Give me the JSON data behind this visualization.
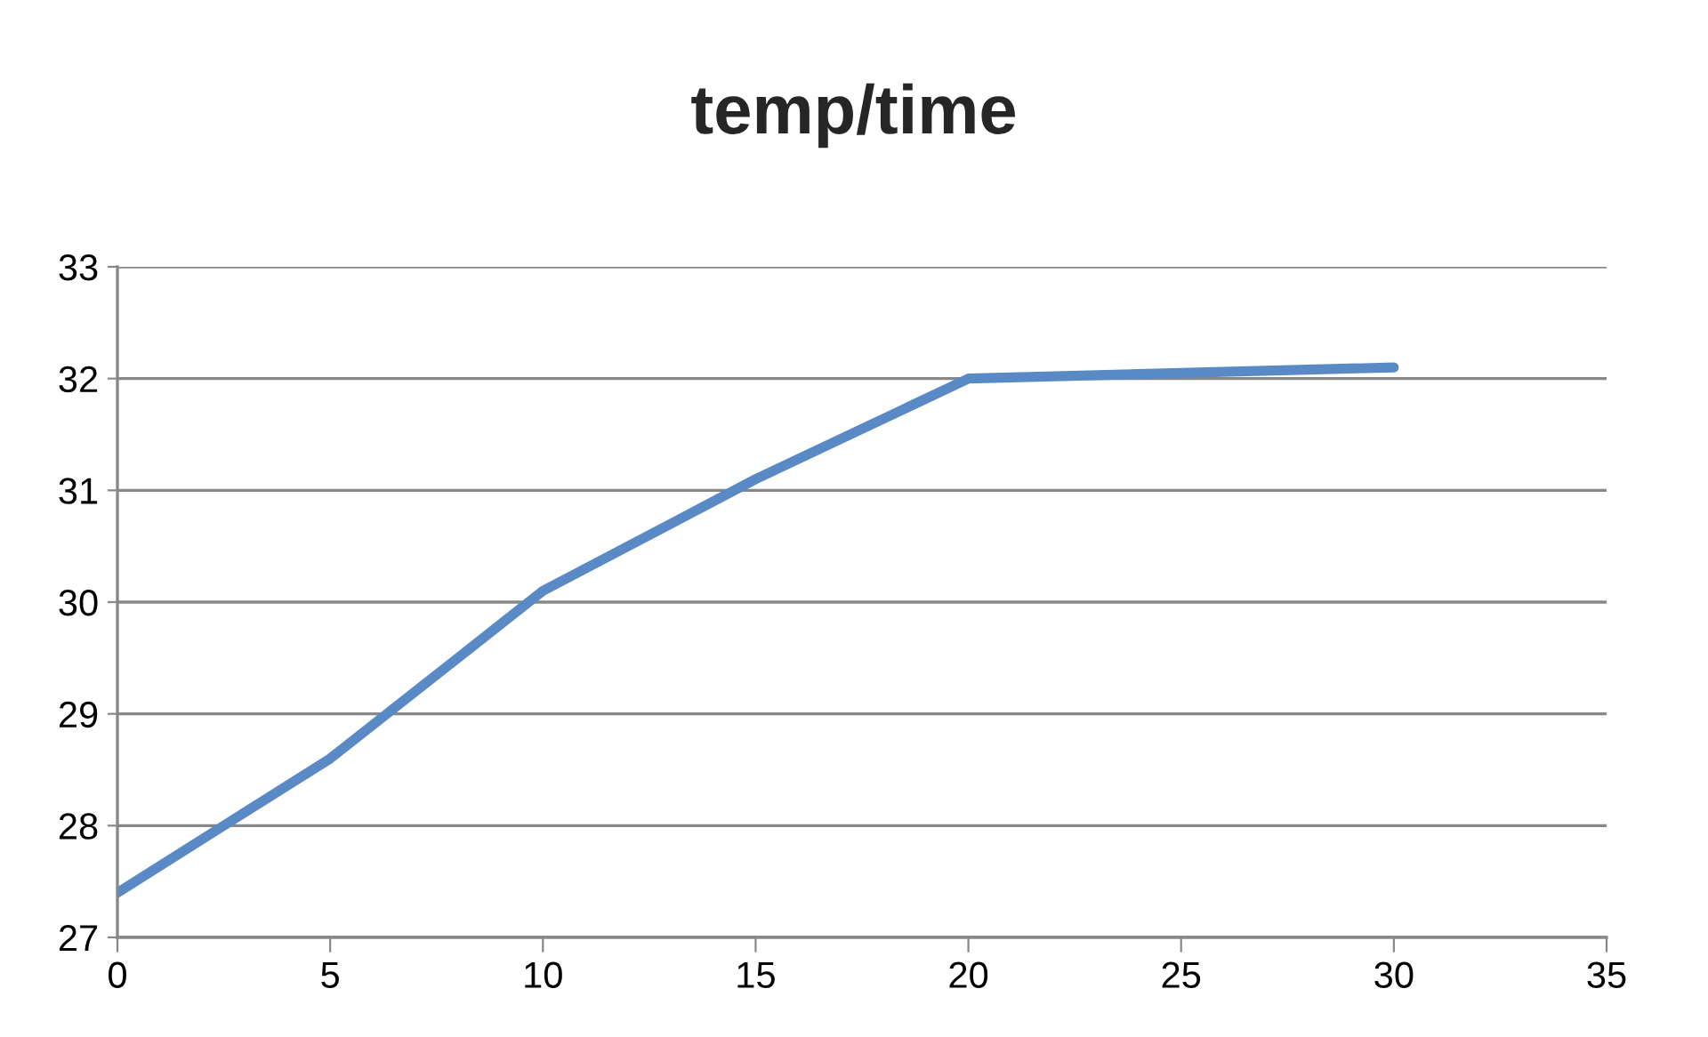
{
  "chart_data": {
    "type": "line",
    "title": "temp/time",
    "x": [
      0,
      5,
      10,
      15,
      20,
      30
    ],
    "series": [
      {
        "color": "#5a8ac6",
        "values": [
          27.4,
          28.6,
          30.1,
          31.1,
          32.0,
          32.1
        ]
      }
    ],
    "xlim": [
      0,
      35
    ],
    "xticks": [
      0,
      5,
      10,
      15,
      20,
      25,
      30,
      35
    ],
    "ylim": [
      27,
      33
    ],
    "yticks": [
      27,
      28,
      29,
      30,
      31,
      32,
      33
    ],
    "grid": "y",
    "legend": false,
    "marker": "none",
    "line_style": "solid"
  }
}
